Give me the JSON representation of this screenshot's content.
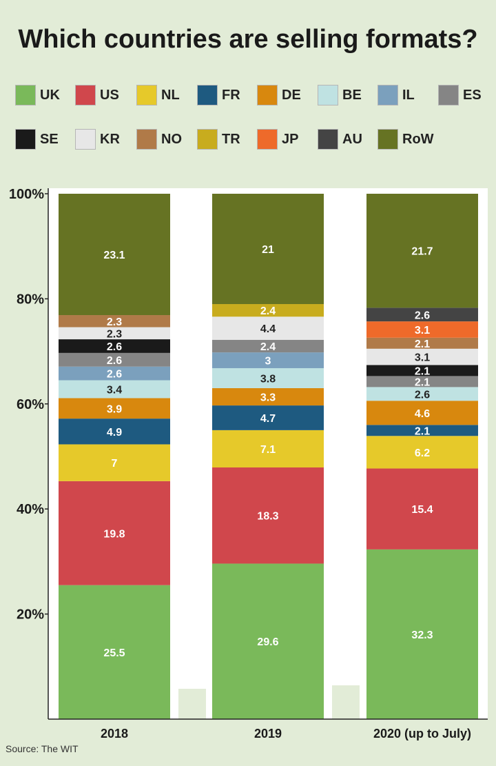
{
  "title": "Which countries are selling formats?",
  "source": "Source: The WIT",
  "colors": {
    "UK": "#7ab95a",
    "US": "#d0474c",
    "NL": "#e6c92a",
    "FR": "#1e5a80",
    "DE": "#d8880e",
    "BE": "#bfe2e2",
    "IL": "#7ba0bd",
    "ES": "#858585",
    "SE": "#1a1a1a",
    "KR": "#e7e7e7",
    "NO": "#b07a48",
    "TR": "#c8ac1e",
    "JP": "#ee6a2a",
    "AU": "#444444",
    "RoW": "#667323"
  },
  "legend": [
    "UK",
    "US",
    "NL",
    "FR",
    "DE",
    "BE",
    "IL",
    "ES",
    "SE",
    "KR",
    "NO",
    "TR",
    "JP",
    "AU",
    "RoW"
  ],
  "chart_data": {
    "type": "bar",
    "stacked": true,
    "title": "Which countries are selling formats?",
    "categories": [
      "2018",
      "2019",
      "2020 (up to July)"
    ],
    "ylim": [
      0,
      100
    ],
    "yticks": [
      "20%",
      "40%",
      "60%",
      "80%",
      "100%"
    ],
    "legend_position": "top",
    "series": [
      {
        "name": "UK",
        "values": [
          25.5,
          29.6,
          32.3
        ]
      },
      {
        "name": "US",
        "values": [
          19.8,
          18.3,
          15.4
        ]
      },
      {
        "name": "NL",
        "values": [
          7,
          7.1,
          6.2
        ]
      },
      {
        "name": "FR",
        "values": [
          4.9,
          4.7,
          2.1
        ]
      },
      {
        "name": "DE",
        "values": [
          3.9,
          3.3,
          4.6
        ]
      },
      {
        "name": "BE",
        "values": [
          3.4,
          3.8,
          2.6
        ]
      },
      {
        "name": "IL",
        "values": [
          2.6,
          3,
          null
        ]
      },
      {
        "name": "ES",
        "values": [
          2.6,
          2.4,
          2.1
        ]
      },
      {
        "name": "SE",
        "values": [
          2.6,
          null,
          2.1
        ]
      },
      {
        "name": "KR",
        "values": [
          2.3,
          4.4,
          3.1
        ]
      },
      {
        "name": "NO",
        "values": [
          2.3,
          null,
          2.1
        ]
      },
      {
        "name": "TR",
        "values": [
          null,
          2.4,
          null
        ]
      },
      {
        "name": "JP",
        "values": [
          null,
          null,
          3.1
        ]
      },
      {
        "name": "AU",
        "values": [
          null,
          null,
          2.6
        ]
      },
      {
        "name": "RoW",
        "values": [
          23.1,
          21,
          21.7
        ]
      }
    ]
  }
}
